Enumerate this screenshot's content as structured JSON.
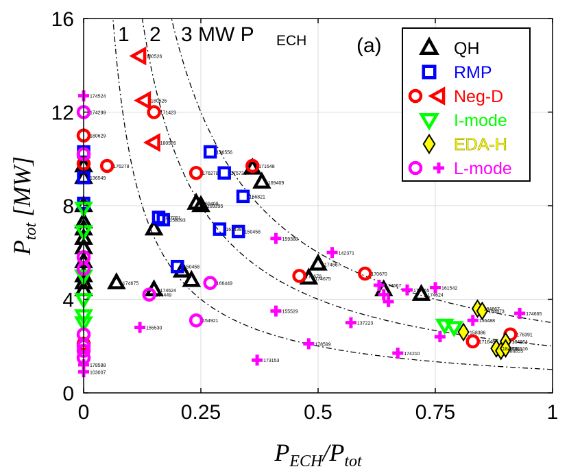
{
  "chart_data": {
    "type": "scatter",
    "xlabel": "P_ECH/P_tot",
    "ylabel": "P_tot [MW]",
    "xlim": [
      0,
      1
    ],
    "ylim": [
      0,
      16
    ],
    "x_ticks": [
      "0",
      "0.25",
      "0.5",
      "0.75",
      "1"
    ],
    "y_ticks": [
      "0",
      "4",
      "8",
      "12",
      "16"
    ],
    "grid": true,
    "legend_position": "top-right",
    "panel_label": "(a)",
    "curve_labels": [
      "1",
      "2",
      "3 MW P",
      "ECH"
    ],
    "curves": [
      {
        "name": "1",
        "P_ECH_MW": 1
      },
      {
        "name": "2",
        "P_ECH_MW": 2
      },
      {
        "name": "3",
        "P_ECH_MW": 3
      }
    ],
    "legend": [
      {
        "label": "QH",
        "color": "#000000",
        "markers": [
          "triangle-up"
        ]
      },
      {
        "label": "RMP",
        "color": "#0000ff",
        "markers": [
          "square"
        ]
      },
      {
        "label": "Neg-D",
        "color": "#ff0000",
        "markers": [
          "circle",
          "triangle-left"
        ]
      },
      {
        "label": "I-mode",
        "color": "#00ff00",
        "markers": [
          "triangle-down"
        ]
      },
      {
        "label": "EDA-H",
        "color": "#ffff00",
        "markers": [
          "diamond"
        ]
      },
      {
        "label": "L-mode",
        "color": "#ff00ff",
        "markers": [
          "circle",
          "plus"
        ]
      }
    ],
    "series": [
      {
        "name": "QH",
        "marker": "triangle-up",
        "color": "#000000",
        "points": [
          {
            "x": 0.0,
            "y": 9.7
          },
          {
            "x": 0.0,
            "y": 9.2
          },
          {
            "x": 0.0,
            "y": 8.0
          },
          {
            "x": 0.0,
            "y": 7.3
          },
          {
            "x": 0.0,
            "y": 7.0
          },
          {
            "x": 0.0,
            "y": 6.6
          },
          {
            "x": 0.0,
            "y": 6.2
          },
          {
            "x": 0.0,
            "y": 5.6
          },
          {
            "x": 0.0,
            "y": 5.0
          },
          {
            "x": 0.0,
            "y": 4.7
          },
          {
            "x": 0.0,
            "y": 4.4
          },
          {
            "x": 0.07,
            "y": 4.7,
            "label": "174675"
          },
          {
            "x": 0.15,
            "y": 7.0
          },
          {
            "x": 0.15,
            "y": 4.4,
            "label": "174624"
          },
          {
            "x": 0.21,
            "y": 5.2
          },
          {
            "x": 0.23,
            "y": 4.8
          },
          {
            "x": 0.24,
            "y": 8.1,
            "label": "169409"
          },
          {
            "x": 0.25,
            "y": 8.0,
            "label": "169395"
          },
          {
            "x": 0.36,
            "y": 9.6
          },
          {
            "x": 0.38,
            "y": 9.0,
            "label": "169409"
          },
          {
            "x": 0.48,
            "y": 4.9,
            "label": "174675"
          },
          {
            "x": 0.5,
            "y": 5.5,
            "label": "174667"
          },
          {
            "x": 0.64,
            "y": 4.4
          },
          {
            "x": 0.72,
            "y": 4.2,
            "label": "174624"
          }
        ]
      },
      {
        "name": "RMP",
        "marker": "square",
        "color": "#0000ff",
        "points": [
          {
            "x": 0.0,
            "y": 10.3
          },
          {
            "x": 0.0,
            "y": 9.2,
            "label": "136549"
          },
          {
            "x": 0.0,
            "y": 8.1
          },
          {
            "x": 0.16,
            "y": 7.5,
            "label": "157051"
          },
          {
            "x": 0.17,
            "y": 7.4,
            "label": "158093"
          },
          {
            "x": 0.2,
            "y": 5.4,
            "label": "150458"
          },
          {
            "x": 0.27,
            "y": 10.3,
            "label": "136556"
          },
          {
            "x": 0.29,
            "y": 7.0,
            "label": "161438"
          },
          {
            "x": 0.3,
            "y": 9.4,
            "label": "175736"
          },
          {
            "x": 0.33,
            "y": 6.9,
            "label": "150458"
          },
          {
            "x": 0.34,
            "y": 8.4,
            "label": "156821"
          }
        ]
      },
      {
        "name": "Neg-D",
        "marker": "circle",
        "color": "#ff0000",
        "points": [
          {
            "x": 0.0,
            "y": 11.0,
            "label": "180629"
          },
          {
            "x": 0.0,
            "y": 9.8
          },
          {
            "x": 0.0,
            "y": 2.1
          },
          {
            "x": 0.05,
            "y": 9.7,
            "label": "176278"
          },
          {
            "x": 0.15,
            "y": 12.0,
            "label": "171423"
          },
          {
            "x": 0.24,
            "y": 9.4,
            "label": "176278"
          },
          {
            "x": 0.36,
            "y": 9.7,
            "label": "171648"
          },
          {
            "x": 0.46,
            "y": 5.0,
            "label": "174679"
          },
          {
            "x": 0.6,
            "y": 5.1,
            "label": "170670"
          },
          {
            "x": 0.83,
            "y": 2.2,
            "label": "171648"
          },
          {
            "x": 0.91,
            "y": 2.5,
            "label": "176391"
          }
        ]
      },
      {
        "name": "Neg-D wedge",
        "marker": "triangle-left",
        "color": "#ff0000",
        "points": [
          {
            "x": 0.12,
            "y": 14.4,
            "label": "180526"
          },
          {
            "x": 0.13,
            "y": 12.5,
            "label": "180526"
          },
          {
            "x": 0.15,
            "y": 10.7,
            "label": "180526"
          }
        ]
      },
      {
        "name": "I-mode",
        "marker": "triangle-down",
        "color": "#00ff00",
        "points": [
          {
            "x": 0.0,
            "y": 7.9
          },
          {
            "x": 0.0,
            "y": 6.9
          },
          {
            "x": 0.0,
            "y": 5.0
          },
          {
            "x": 0.0,
            "y": 4.0
          },
          {
            "x": 0.0,
            "y": 3.3
          },
          {
            "x": 0.0,
            "y": 3.0
          },
          {
            "x": 0.77,
            "y": 2.9
          },
          {
            "x": 0.79,
            "y": 2.8
          }
        ]
      },
      {
        "name": "EDA-H",
        "marker": "diamond",
        "color": "#ffff00",
        "points": [
          {
            "x": 0.81,
            "y": 2.6,
            "label": "158386"
          },
          {
            "x": 0.84,
            "y": 3.6,
            "label": "184867"
          },
          {
            "x": 0.85,
            "y": 3.5,
            "label": "184873"
          },
          {
            "x": 0.88,
            "y": 1.9,
            "label": "184853"
          },
          {
            "x": 0.89,
            "y": 1.8,
            "label": "184855"
          },
          {
            "x": 0.9,
            "y": 2.2,
            "label": "184864"
          },
          {
            "x": 0.9,
            "y": 1.9,
            "label": "184916"
          }
        ]
      },
      {
        "name": "L-mode",
        "marker": "circle",
        "color": "#ff00ff",
        "points": [
          {
            "x": 0.0,
            "y": 12.0,
            "label": "174299"
          },
          {
            "x": 0.0,
            "y": 10.2
          },
          {
            "x": 0.0,
            "y": 5.8
          },
          {
            "x": 0.0,
            "y": 5.3
          },
          {
            "x": 0.0,
            "y": 2.5
          },
          {
            "x": 0.0,
            "y": 2.0
          },
          {
            "x": 0.0,
            "y": 1.8
          },
          {
            "x": 0.0,
            "y": 1.5
          },
          {
            "x": 0.14,
            "y": 4.2,
            "label": "166449"
          },
          {
            "x": 0.24,
            "y": 3.1,
            "label": "154921"
          },
          {
            "x": 0.27,
            "y": 4.7,
            "label": "166449"
          }
        ]
      },
      {
        "name": "L-mode cross",
        "marker": "plus",
        "color": "#ff00ff",
        "points": [
          {
            "x": 0.0,
            "y": 12.7,
            "label": "174524"
          },
          {
            "x": 0.0,
            "y": 1.2,
            "label": "178588"
          },
          {
            "x": 0.0,
            "y": 0.9,
            "label": "103007"
          },
          {
            "x": 0.12,
            "y": 2.8,
            "label": "155530"
          },
          {
            "x": 0.37,
            "y": 1.4,
            "label": "173153"
          },
          {
            "x": 0.41,
            "y": 6.6,
            "label": "159388"
          },
          {
            "x": 0.41,
            "y": 3.5,
            "label": "155529"
          },
          {
            "x": 0.48,
            "y": 2.1,
            "label": "178599"
          },
          {
            "x": 0.53,
            "y": 6.0,
            "label": "142371"
          },
          {
            "x": 0.57,
            "y": 3.0,
            "label": "137223"
          },
          {
            "x": 0.63,
            "y": 4.6,
            "label": "174667"
          },
          {
            "x": 0.64,
            "y": 4.2
          },
          {
            "x": 0.65,
            "y": 3.9
          },
          {
            "x": 0.67,
            "y": 1.7,
            "label": "174210"
          },
          {
            "x": 0.69,
            "y": 4.4,
            "label": "174665"
          },
          {
            "x": 0.75,
            "y": 4.5,
            "label": "161542"
          },
          {
            "x": 0.76,
            "y": 2.4
          },
          {
            "x": 0.83,
            "y": 3.1,
            "label": "156488"
          },
          {
            "x": 0.93,
            "y": 3.4,
            "label": "174665"
          }
        ]
      }
    ]
  }
}
